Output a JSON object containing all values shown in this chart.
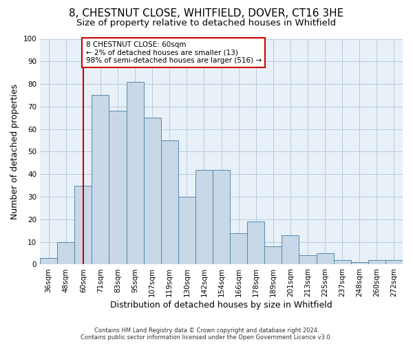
{
  "title1": "8, CHESTNUT CLOSE, WHITFIELD, DOVER, CT16 3HE",
  "title2": "Size of property relative to detached houses in Whitfield",
  "xlabel": "Distribution of detached houses by size in Whitfield",
  "ylabel": "Number of detached properties",
  "categories": [
    "36sqm",
    "48sqm",
    "60sqm",
    "71sqm",
    "83sqm",
    "95sqm",
    "107sqm",
    "119sqm",
    "130sqm",
    "142sqm",
    "154sqm",
    "166sqm",
    "178sqm",
    "189sqm",
    "201sqm",
    "213sqm",
    "225sqm",
    "237sqm",
    "248sqm",
    "260sqm",
    "272sqm"
  ],
  "values": [
    3,
    10,
    35,
    75,
    68,
    81,
    65,
    55,
    30,
    42,
    42,
    14,
    19,
    8,
    13,
    4,
    5,
    2,
    1,
    2,
    2
  ],
  "bar_color": "#c8d8e8",
  "bar_edge_color": "#5588aa",
  "vline_x": 2,
  "vline_color": "#cc0000",
  "annotation_text": "8 CHESTNUT CLOSE: 60sqm\n← 2% of detached houses are smaller (13)\n98% of semi-detached houses are larger (516) →",
  "annotation_box_color": "#cc0000",
  "ylim": [
    0,
    100
  ],
  "yticks": [
    0,
    10,
    20,
    30,
    40,
    50,
    60,
    70,
    80,
    90,
    100
  ],
  "grid_color": "#b0c4d8",
  "bg_color": "#e8f0f8",
  "footer1": "Contains HM Land Registry data © Crown copyright and database right 2024.",
  "footer2": "Contains public sector information licensed under the Open Government Licence v3.0.",
  "title1_fontsize": 11,
  "title2_fontsize": 9.5,
  "tick_fontsize": 7.5,
  "ylabel_fontsize": 9,
  "xlabel_fontsize": 9,
  "footer_fontsize": 6,
  "annotation_fontsize": 7.5
}
